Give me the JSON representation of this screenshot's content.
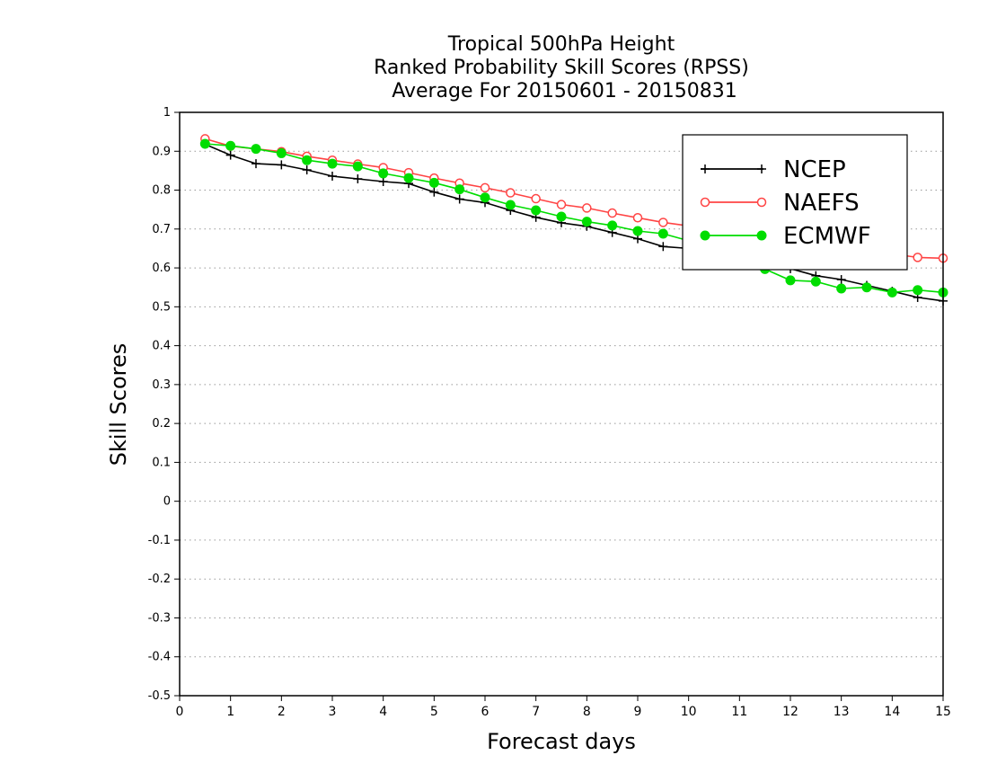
{
  "chart_data": {
    "type": "line",
    "title_lines": [
      "Tropical 500hPa Height",
      "Ranked Probability Skill Scores (RPSS)",
      " Average For 20150601 - 20150831"
    ],
    "xlabel": "Forecast days",
    "ylabel": "Skill Scores",
    "xlim": [
      0,
      15
    ],
    "ylim": [
      -0.5,
      1
    ],
    "x_ticks": [
      "0",
      "1",
      "2",
      "3",
      "4",
      "5",
      "6",
      "7",
      "8",
      "9",
      "10",
      "11",
      "12",
      "13",
      "14",
      "15"
    ],
    "y_ticks": [
      "1",
      "0.9",
      "0.8",
      "0.7",
      "0.6",
      "0.5",
      "0.4",
      "0.3",
      "0.2",
      "0.1",
      "0",
      "-0.1",
      "-0.2",
      "-0.3",
      "-0.4",
      "-0.5"
    ],
    "grid": "horizontal dotted",
    "legend_position": "top-right",
    "x": [
      0.5,
      1,
      1.5,
      2,
      2.5,
      3,
      3.5,
      4,
      4.5,
      5,
      5.5,
      6,
      6.5,
      7,
      7.5,
      8,
      8.5,
      9,
      9.5,
      10,
      10.5,
      11,
      11.5,
      12,
      12.5,
      13,
      13.5,
      14,
      14.5,
      15
    ],
    "series": [
      {
        "name": "NCEP",
        "color": "#000000",
        "marker": "plus",
        "values": [
          0.918,
          0.89,
          0.868,
          0.865,
          0.852,
          0.836,
          0.829,
          0.822,
          0.817,
          0.795,
          0.777,
          0.768,
          0.748,
          0.73,
          0.716,
          0.707,
          0.691,
          0.675,
          0.655,
          0.65,
          0.64,
          0.63,
          0.615,
          0.598,
          0.58,
          0.57,
          0.555,
          0.54,
          0.524,
          0.515
        ]
      },
      {
        "name": "NAEFS",
        "color": "#ff4444",
        "marker": "open-circle",
        "values": [
          0.932,
          0.913,
          0.906,
          0.899,
          0.887,
          0.877,
          0.867,
          0.858,
          0.845,
          0.831,
          0.818,
          0.806,
          0.793,
          0.778,
          0.763,
          0.754,
          0.741,
          0.729,
          0.717,
          0.708,
          0.7,
          0.688,
          0.675,
          0.665,
          0.655,
          0.648,
          0.642,
          0.636,
          0.627,
          0.625
        ]
      },
      {
        "name": "ECMWF",
        "color": "#00dd00",
        "marker": "filled-circle",
        "values": [
          0.919,
          0.914,
          0.906,
          0.895,
          0.877,
          0.868,
          0.861,
          0.843,
          0.831,
          0.819,
          0.802,
          0.781,
          0.762,
          0.748,
          0.732,
          0.719,
          0.709,
          0.695,
          0.688,
          0.67,
          0.65,
          0.63,
          0.597,
          0.568,
          0.565,
          0.547,
          0.55,
          0.537,
          0.543,
          0.537
        ]
      }
    ]
  }
}
